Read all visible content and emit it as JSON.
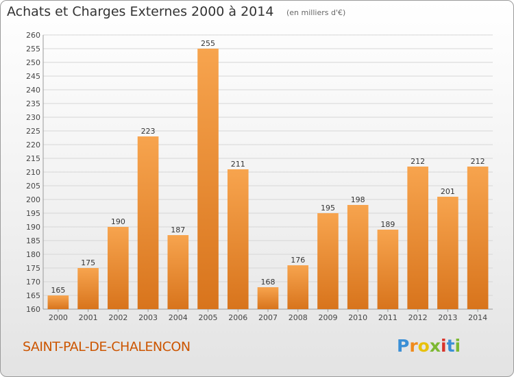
{
  "header": {
    "title": "Achats et Charges Externes 2000 à 2014",
    "subtitle": "(en milliers d'€)"
  },
  "footer": {
    "commune": "SAINT-PAL-DE-CHALENCON",
    "logo_letters": [
      "P",
      "r",
      "o",
      "x",
      "i",
      "t",
      "i"
    ],
    "logo_colors": [
      "#3b8fd6",
      "#f08a1c",
      "#e8c10c",
      "#7cb832",
      "#d8342c",
      "#3b8fd6",
      "#7cb832"
    ]
  },
  "chart_data": {
    "type": "bar",
    "title": "Achats et Charges Externes 2000 à 2014",
    "subtitle": "(en milliers d'€)",
    "categories": [
      "2000",
      "2001",
      "2002",
      "2003",
      "2004",
      "2005",
      "2006",
      "2007",
      "2008",
      "2009",
      "2010",
      "2011",
      "2012",
      "2013",
      "2014"
    ],
    "values": [
      165,
      175,
      190,
      223,
      187,
      255,
      211,
      168,
      176,
      195,
      198,
      189,
      212,
      201,
      212
    ],
    "ylim": [
      160,
      260
    ],
    "yticks": [
      160,
      165,
      170,
      175,
      180,
      185,
      190,
      195,
      200,
      205,
      210,
      215,
      220,
      225,
      230,
      235,
      240,
      245,
      250,
      255,
      260
    ],
    "grid": true,
    "bar_color_light": "#f7a44e",
    "bar_color_dark": "#d8741c",
    "xlabel": "",
    "ylabel": ""
  }
}
